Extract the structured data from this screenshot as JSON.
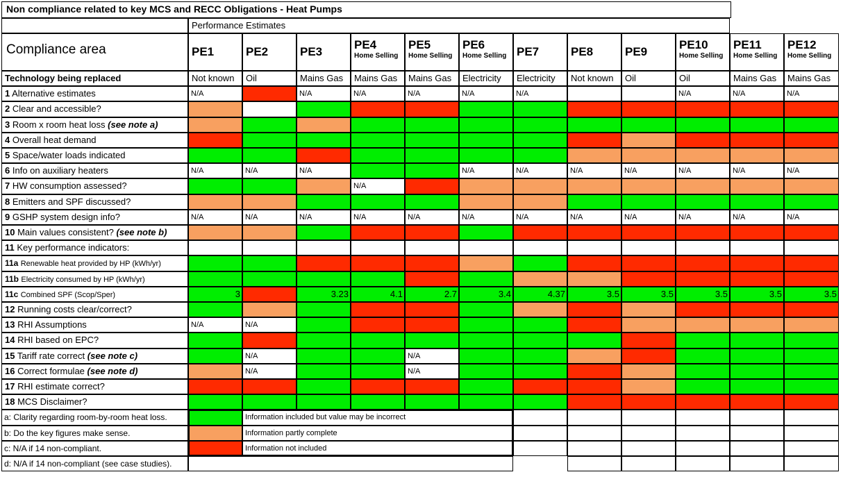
{
  "title": "Non compliance related to key MCS and RECC Obligations - Heat Pumps",
  "section_label": "Performance Estimates",
  "compliance_area_label": "Compliance area",
  "colors": {
    "green": "#00ee00",
    "amber": "#f8a060",
    "red": "#ff2a00",
    "white": "#ffffff"
  },
  "columns": [
    {
      "id": "PE1",
      "sub": ""
    },
    {
      "id": "PE2",
      "sub": ""
    },
    {
      "id": "PE3",
      "sub": ""
    },
    {
      "id": "PE4",
      "sub": "Home Selling"
    },
    {
      "id": "PE5",
      "sub": "Home Selling"
    },
    {
      "id": "PE6",
      "sub": "Home Selling"
    },
    {
      "id": "PE7",
      "sub": ""
    },
    {
      "id": "PE8",
      "sub": ""
    },
    {
      "id": "PE9",
      "sub": ""
    },
    {
      "id": "PE10",
      "sub": "Home Selling"
    },
    {
      "id": "PE11",
      "sub": "Home Selling"
    },
    {
      "id": "PE12",
      "sub": "Home Selling"
    }
  ],
  "tech_row": {
    "label": "Technology being replaced",
    "values": [
      "Not known",
      "Oil",
      "Mains Gas",
      "Mains Gas",
      "Mains Gas",
      "Electricity",
      "Electricity",
      "Not known",
      "Oil",
      "Oil",
      "Mains Gas",
      "Mains Gas"
    ]
  },
  "rows": [
    {
      "num": "1",
      "label": "Alternative estimates",
      "cells": [
        "N/A",
        "R",
        "N/A",
        "N/A",
        "N/A",
        "N/A",
        "N/A",
        "W",
        "W",
        "N/A",
        "N/A",
        "N/A"
      ]
    },
    {
      "num": "2",
      "label": "Clear and accessible?",
      "cells": [
        "A",
        "W",
        "G",
        "R",
        "R",
        "G",
        "G",
        "R",
        "R",
        "R",
        "R",
        "R"
      ]
    },
    {
      "num": "3",
      "label": "Room x room heat loss",
      "note": "(see note a)",
      "cells": [
        "A",
        "G",
        "A",
        "G",
        "G",
        "G",
        "G",
        "G",
        "G",
        "G",
        "G",
        "G"
      ]
    },
    {
      "num": "4",
      "label": "Overall heat demand",
      "cells": [
        "R",
        "G",
        "G",
        "G",
        "G",
        "G",
        "G",
        "R",
        "A",
        "R",
        "R",
        "R"
      ]
    },
    {
      "num": "5",
      "label": "Space/water loads indicated",
      "cells": [
        "G",
        "G",
        "R",
        "G",
        "G",
        "G",
        "G",
        "A",
        "A",
        "A",
        "A",
        "A"
      ]
    },
    {
      "num": "6",
      "label": "Info on auxiliary heaters",
      "cells": [
        "N/A",
        "N/A",
        "N/A",
        "G",
        "G",
        "N/A",
        "N/A",
        "N/A",
        "N/A",
        "N/A",
        "N/A",
        "N/A"
      ]
    },
    {
      "num": "7",
      "label": "HW consumption assessed?",
      "cells": [
        "G",
        "G",
        "A",
        "N/A",
        "R",
        "A",
        "A",
        "A",
        "A",
        "A",
        "A",
        "A"
      ]
    },
    {
      "num": "8",
      "label": "Emitters and SPF discussed?",
      "cells": [
        "A",
        "A",
        "G",
        "G",
        "G",
        "A",
        "A",
        "G",
        "G",
        "G",
        "G",
        "G"
      ]
    },
    {
      "num": "9",
      "label": "GSHP system design info?",
      "cells": [
        "N/A",
        "N/A",
        "N/A",
        "N/A",
        "N/A",
        "N/A",
        "N/A",
        "N/A",
        "N/A",
        "N/A",
        "N/A",
        "N/A"
      ]
    },
    {
      "num": "10",
      "label": "Main values consistent?",
      "note": "(see note b)",
      "cells": [
        "A",
        "A",
        "G",
        "R",
        "R",
        "G",
        "R",
        "R",
        "R",
        "R",
        "R",
        "R"
      ]
    },
    {
      "num": "11",
      "label": "Key performance indicators:",
      "cells": [
        "W",
        "W",
        "W",
        "W",
        "W",
        "W",
        "W",
        "W",
        "W",
        "W",
        "W",
        "W"
      ]
    },
    {
      "num": "11a",
      "label": "Renewable heat provided by HP (kWh/yr)",
      "small": true,
      "cells": [
        "G",
        "G",
        "R",
        "R",
        "R",
        "A",
        "G",
        "R",
        "R",
        "R",
        "R",
        "R"
      ]
    },
    {
      "num": "11b",
      "label": "Electricity consumed by HP (kWh/yr)",
      "small": true,
      "cells": [
        "G",
        "G",
        "G",
        "G",
        "R",
        "G",
        "A",
        "A",
        "R",
        "R",
        "R",
        "R"
      ]
    },
    {
      "num": "11c",
      "label": "Combined SPF (Scop/Sper)",
      "small": true,
      "cells": [
        "G",
        "R",
        "G",
        "G",
        "G",
        "G",
        "G",
        "G",
        "G",
        "G",
        "G",
        "G"
      ],
      "values": [
        "3",
        "",
        "3.23",
        "4.1",
        "2.7",
        "3.4",
        "4.37",
        "3.5",
        "3.5",
        "3.5",
        "3.5",
        "3.5"
      ]
    },
    {
      "num": "12",
      "label": "Running costs clear/correct?",
      "cells": [
        "G",
        "A",
        "G",
        "R",
        "R",
        "G",
        "A",
        "R",
        "A",
        "R",
        "R",
        "R"
      ]
    },
    {
      "num": "13",
      "label": "RHI Assumptions",
      "cells": [
        "N/A",
        "N/A",
        "G",
        "R",
        "R",
        "G",
        "G",
        "R",
        "A",
        "A",
        "A",
        "A"
      ]
    },
    {
      "num": "14",
      "label": "RHI based on EPC?",
      "cells": [
        "G",
        "R",
        "G",
        "G",
        "G",
        "G",
        "G",
        "G",
        "R",
        "G",
        "G",
        "G"
      ]
    },
    {
      "num": "15",
      "label": "Tariff rate correct",
      "note": "(see note c)",
      "cells": [
        "G",
        "N/A",
        "G",
        "G",
        "N/A",
        "G",
        "G",
        "A",
        "R",
        "G",
        "G",
        "G"
      ]
    },
    {
      "num": "16",
      "label": "Correct formulae",
      "note": "(see note d)",
      "cells": [
        "A",
        "N/A",
        "G",
        "G",
        "N/A",
        "G",
        "G",
        "R",
        "A",
        "G",
        "G",
        "G"
      ]
    },
    {
      "num": "17",
      "label": "RHI estimate correct?",
      "cells": [
        "R",
        "R",
        "G",
        "R",
        "R",
        "G",
        "R",
        "R",
        "A",
        "G",
        "G",
        "G"
      ]
    },
    {
      "num": "18",
      "label": "MCS Disclaimer?",
      "cells": [
        "G",
        "G",
        "G",
        "G",
        "G",
        "G",
        "G",
        "R",
        "R",
        "R",
        "R",
        "R"
      ]
    }
  ],
  "notes": [
    {
      "label": "a: Clarity regarding room-by-room heat loss."
    },
    {
      "label": "b: Do the key figures make sense."
    },
    {
      "label": "c: N/A if 14 non-compliant."
    },
    {
      "label": "d: N/A if 14 non-compliant (see case studies)."
    }
  ],
  "legend": [
    {
      "color": "green",
      "text": "Information included but value may be incorrect"
    },
    {
      "color": "amber",
      "text": "Information partly complete"
    },
    {
      "color": "red",
      "text": "Information not included"
    }
  ]
}
